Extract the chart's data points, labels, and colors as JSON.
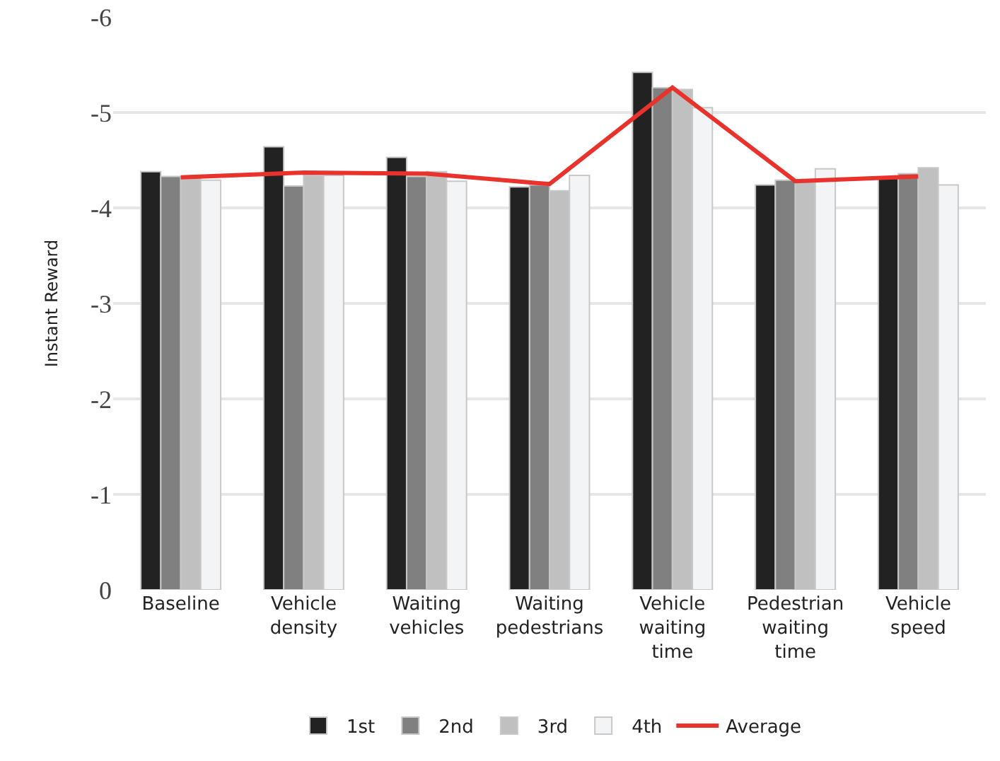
{
  "chart_data": {
    "type": "bar",
    "ylabel": "Instant Reward",
    "categories": [
      "Baseline",
      "Vehicle density",
      "Waiting vehicles",
      "Waiting pedestrians",
      "Vehicle waiting time",
      "Pedestrian waiting time",
      "Vehicle speed"
    ],
    "series": [
      {
        "name": "1st",
        "color": "#222222",
        "values": [
          -4.38,
          -4.64,
          -4.53,
          -4.22,
          -5.42,
          -4.24,
          -4.31
        ]
      },
      {
        "name": "2nd",
        "color": "#808080",
        "values": [
          -4.33,
          -4.23,
          -4.33,
          -4.24,
          -5.26,
          -4.29,
          -4.36
        ]
      },
      {
        "name": "3rd",
        "color": "#c0c0c0",
        "values": [
          -4.32,
          -4.34,
          -4.38,
          -4.18,
          -5.24,
          -4.28,
          -4.42
        ]
      },
      {
        "name": "4th",
        "color": "#f2f4f5",
        "values": [
          -4.29,
          -4.34,
          -4.28,
          -4.34,
          -5.05,
          -4.41,
          -4.24
        ]
      },
      {
        "name": "Average",
        "type": "line",
        "color": "#e8322b",
        "values": [
          -4.32,
          -4.37,
          -4.36,
          -4.25,
          -5.26,
          -4.28,
          -4.33
        ]
      }
    ],
    "ylim": [
      0,
      -6
    ],
    "yticks": [
      0,
      -1,
      -2,
      -3,
      -4,
      -5,
      -6
    ],
    "grid": "y",
    "legend": "bottom",
    "marker": "none",
    "line_style": "solid"
  }
}
